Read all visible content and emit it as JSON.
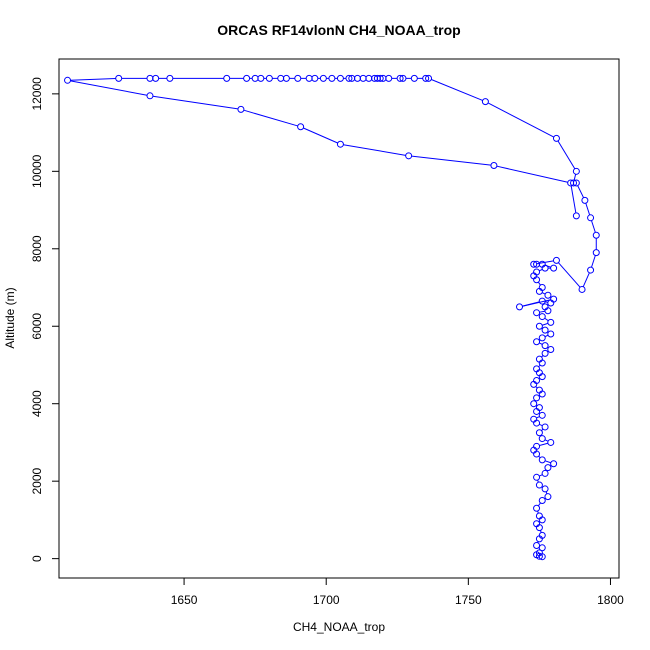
{
  "chart_data": {
    "type": "line",
    "title": "ORCAS RF14vlonN CH4_NOAA_trop",
    "xlabel": "CH4_NOAA_trop",
    "ylabel": "Altitude (m)",
    "xlim": [
      1606,
      1803
    ],
    "ylim": [
      -500,
      12900
    ],
    "xticks": [
      1650,
      1700,
      1750,
      1800
    ],
    "yticks": [
      0,
      2000,
      4000,
      6000,
      8000,
      10000,
      12000
    ],
    "grid": false,
    "legend": "none",
    "series_color": "#0000ff",
    "marker": "open-circle",
    "series": [
      {
        "x": [
          1776,
          1775,
          1774,
          1775,
          1776,
          1774,
          1775,
          1776,
          1775,
          1774,
          1776,
          1775,
          1774,
          1776,
          1778,
          1777,
          1775,
          1774,
          1777,
          1778,
          1780,
          1776,
          1774,
          1773,
          1774,
          1779,
          1776,
          1775,
          1777,
          1774,
          1773,
          1776,
          1774,
          1775,
          1773,
          1774,
          1776,
          1775,
          1773,
          1774,
          1776,
          1775,
          1774,
          1776,
          1775,
          1777,
          1779,
          1777,
          1774,
          1776,
          1779,
          1777,
          1775,
          1779,
          1776,
          1774,
          1778,
          1777,
          1779,
          1776,
          1768,
          1780,
          1778,
          1775,
          1776,
          1774,
          1773,
          1774,
          1777,
          1780,
          1776,
          1774,
          1773,
          1781,
          1790,
          1793,
          1795,
          1795,
          1793,
          1791,
          1788,
          1787,
          1788,
          1781,
          1756,
          1736,
          1735,
          1731,
          1727,
          1726,
          1722,
          1720,
          1719,
          1718,
          1717,
          1715,
          1713,
          1711,
          1709,
          1708,
          1705,
          1702,
          1699,
          1696,
          1694,
          1690,
          1686,
          1684,
          1680,
          1677,
          1675,
          1672,
          1665,
          1645,
          1640,
          1638,
          1627,
          1609,
          1638,
          1670,
          1691,
          1705,
          1729,
          1759,
          1786,
          1788
        ],
        "y": [
          50,
          60,
          100,
          150,
          280,
          340,
          510,
          600,
          800,
          900,
          1000,
          1100,
          1300,
          1500,
          1600,
          1800,
          1900,
          2100,
          2200,
          2350,
          2450,
          2550,
          2700,
          2800,
          2900,
          3000,
          3100,
          3250,
          3400,
          3500,
          3600,
          3700,
          3800,
          3900,
          4000,
          4150,
          4250,
          4350,
          4500,
          4600,
          4700,
          4800,
          4900,
          5050,
          5150,
          5300,
          5400,
          5500,
          5600,
          5700,
          5800,
          5900,
          6000,
          6100,
          6250,
          6350,
          6400,
          6500,
          6600,
          6650,
          6500,
          6700,
          6800,
          6900,
          7000,
          7200,
          7300,
          7400,
          7500,
          7500,
          7600,
          7600,
          7600,
          7700,
          6950,
          7450,
          7900,
          8350,
          8800,
          9250,
          9700,
          9700,
          10000,
          10850,
          11800,
          12400,
          12400,
          12400,
          12400,
          12400,
          12400,
          12400,
          12400,
          12400,
          12400,
          12400,
          12400,
          12400,
          12400,
          12400,
          12400,
          12400,
          12400,
          12400,
          12400,
          12400,
          12400,
          12400,
          12400,
          12400,
          12400,
          12400,
          12400,
          12400,
          12400,
          12400,
          12400,
          12350,
          11950,
          11600,
          11150,
          10700,
          10400,
          10150,
          9700,
          8850
        ]
      }
    ]
  }
}
